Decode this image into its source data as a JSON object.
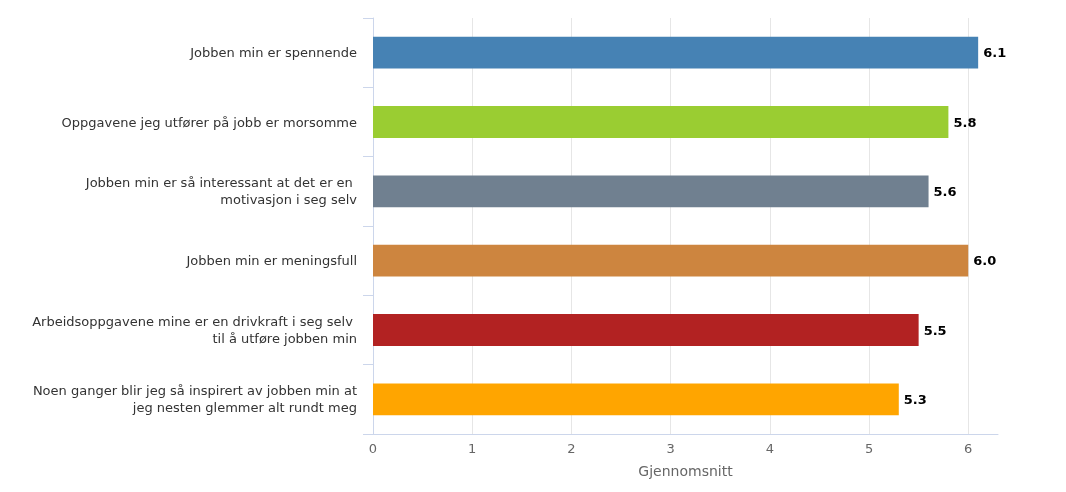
{
  "chart_data": {
    "type": "bar",
    "orientation": "horizontal",
    "xlabel": "Gjennomsnitt",
    "categories": [
      "Jobben min er spennende",
      "Oppgavene jeg utfører på jobb er morsomme",
      "Jobben min er så interessant at det er en motivasjon i seg selv",
      "Jobben min er meningsfull",
      "Arbeidsoppgavene mine er en drivkraft i seg selv til å utføre jobben min",
      "Noen ganger blir jeg så inspirert av jobben min at jeg nesten glemmer alt rundt meg"
    ],
    "values": [
      6.1,
      5.8,
      5.6,
      6.0,
      5.5,
      5.3
    ],
    "colors": [
      "#4682b4",
      "#9acd32",
      "#708090",
      "#cd853f",
      "#b22222",
      "#ffa500"
    ],
    "value_labels": [
      "6.1",
      "5.8",
      "5.6",
      "6.0",
      "5.5",
      "5.3"
    ],
    "xlim": [
      0,
      6.3
    ],
    "xticks": [
      0,
      1,
      2,
      3,
      4,
      5,
      6
    ],
    "grid": "x"
  }
}
